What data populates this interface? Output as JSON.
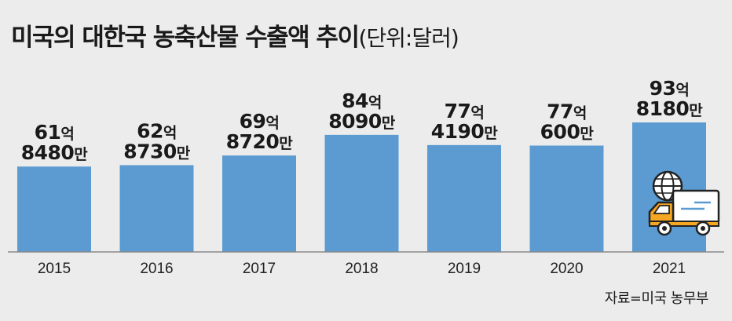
{
  "header": {
    "title": "미국의 대한국 농축산물 수출액 추이",
    "unit": "(단위:달러)"
  },
  "source": "자료=미국 농무부",
  "colors": {
    "bar": "#5b9bd1",
    "background": "#ececec",
    "icon_orange": "#f5a623"
  },
  "icons": [
    "globe-icon",
    "delivery-truck-icon"
  ],
  "chart_data": {
    "type": "bar",
    "categories": [
      "2015",
      "2016",
      "2017",
      "2018",
      "2019",
      "2020",
      "2021"
    ],
    "values": [
      6184800000,
      6287300000,
      6987200000,
      8480900000,
      7741900000,
      7706000000,
      9381800000
    ],
    "data_labels": [
      [
        "61억",
        "8480만"
      ],
      [
        "62억",
        "8730만"
      ],
      [
        "69억",
        "8720만"
      ],
      [
        "84억",
        "8090만"
      ],
      [
        "77억",
        "4190만"
      ],
      [
        "77억",
        "600만"
      ],
      [
        "93억",
        "8180만"
      ]
    ],
    "title": "미국의 대한국 농축산물 수출액 추이",
    "unit": "달러",
    "xlabel": "",
    "ylabel": "",
    "grid": false,
    "legend": "none"
  }
}
